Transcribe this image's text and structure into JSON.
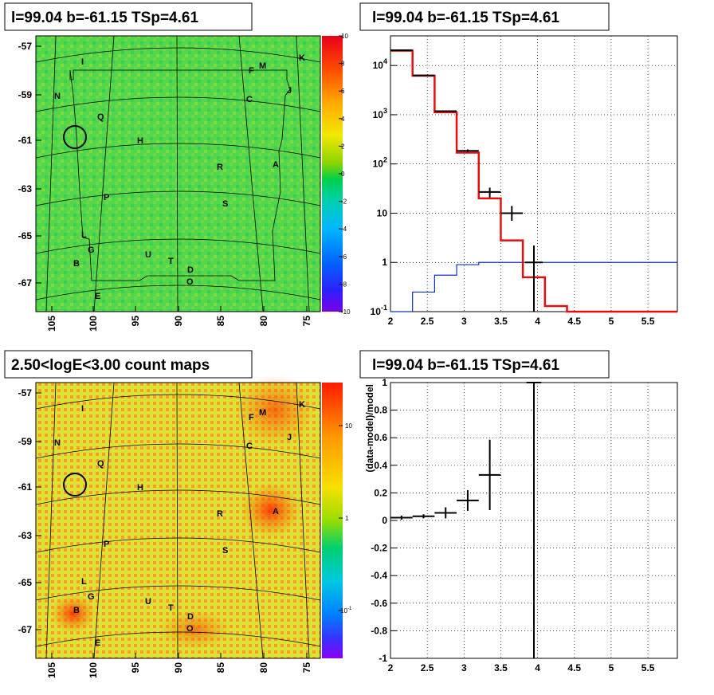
{
  "panels": {
    "tl": {
      "title": "l=99.04 b=-61.15 TSp=4.61"
    },
    "tr": {
      "title": "l=99.04 b=-61.15 TSp=4.61"
    },
    "bl": {
      "title": "2.50<logE<3.00 count maps"
    },
    "br": {
      "title": "l=99.04 b=-61.15 TSp=4.61"
    }
  },
  "maps": {
    "lat_ticks": [
      "-57",
      "-59",
      "-61",
      "-63",
      "-65",
      "-67"
    ],
    "lon_ticks": [
      "105",
      "100",
      "95",
      "90",
      "85",
      "80",
      "75"
    ],
    "source_labels": [
      "I",
      "M",
      "K",
      "F",
      "N",
      "C",
      "J",
      "Q",
      "H",
      "A",
      "R",
      "P",
      "S",
      "L",
      "G",
      "U",
      "T",
      "B",
      "D",
      "O",
      "E"
    ]
  },
  "colorbars": {
    "residual_labels": [
      "10",
      "8",
      "6",
      "4",
      "2",
      "0",
      "-2",
      "-4",
      "-6",
      "-8",
      "-10"
    ],
    "counts_labels": {
      "ten": "10",
      "one": "1",
      "tenth_base": "10",
      "tenth_exp": "-1"
    }
  },
  "chart_data": [
    {
      "type": "step",
      "title": "l=99.04 b=-61.15 TSp=4.61",
      "xlim": [
        2,
        5.9
      ],
      "ylim": [
        0.1,
        40000
      ],
      "yscale": "log",
      "grid": true,
      "x_ticks": [
        "2",
        "2.5",
        "3",
        "3.5",
        "4",
        "4.5",
        "5",
        "5.5"
      ],
      "y_ticks": [
        {
          "base": "10",
          "exp": "4"
        },
        {
          "base": "10",
          "exp": "3"
        },
        {
          "base": "10",
          "exp": "2"
        },
        {
          "text": "10"
        },
        {
          "text": "1"
        },
        {
          "base": "10",
          "exp": "-1"
        }
      ],
      "x_edges": [
        2.0,
        2.3,
        2.6,
        2.9,
        3.2,
        3.5,
        3.8,
        4.1,
        4.4,
        5.9
      ],
      "model_total": [
        20000,
        6200,
        1120,
        170,
        20,
        2.8,
        0.5,
        0.13,
        0.1
      ],
      "model_source": [
        0.1,
        0.25,
        0.55,
        0.9,
        1.0,
        1.0,
        1.0,
        1.0,
        1.0
      ],
      "data_points": [
        {
          "x": 2.15,
          "y": 20400,
          "xerr": 0.15,
          "ylo": 20200,
          "yhi": 20600
        },
        {
          "x": 2.45,
          "y": 6300,
          "xerr": 0.15,
          "ylo": 6220,
          "yhi": 6380
        },
        {
          "x": 2.75,
          "y": 1180,
          "xerr": 0.15,
          "ylo": 1150,
          "yhi": 1210
        },
        {
          "x": 3.05,
          "y": 185,
          "xerr": 0.15,
          "ylo": 172,
          "yhi": 198
        },
        {
          "x": 3.35,
          "y": 27,
          "xerr": 0.15,
          "ylo": 21,
          "yhi": 33
        },
        {
          "x": 3.65,
          "y": 10,
          "xerr": 0.15,
          "ylo": 7,
          "yhi": 14
        },
        {
          "x": 3.95,
          "y": 1,
          "xerr": 0.12,
          "ylo": 0.1,
          "yhi": 2.2
        }
      ]
    },
    {
      "type": "errorbar",
      "title": "l=99.04 b=-61.15 TSp=4.61",
      "ylabel": "(data-model)/model",
      "xlim": [
        2,
        5.9
      ],
      "ylim": [
        -1,
        1
      ],
      "grid": true,
      "x_ticks": [
        "2",
        "2.5",
        "3",
        "3.5",
        "4",
        "4.5",
        "5",
        "5.5"
      ],
      "y_ticks": [
        "1",
        "0.8",
        "0.6",
        "0.4",
        "0.2",
        "0",
        "-0.2",
        "-0.4",
        "-0.6",
        "-0.8",
        "-1"
      ],
      "points": [
        {
          "x": 2.15,
          "y": 0.02,
          "xerr": 0.15,
          "yerr": 0.015
        },
        {
          "x": 2.45,
          "y": 0.03,
          "xerr": 0.15,
          "yerr": 0.015
        },
        {
          "x": 2.75,
          "y": 0.055,
          "xerr": 0.15,
          "yerr": 0.04
        },
        {
          "x": 3.05,
          "y": 0.145,
          "xerr": 0.15,
          "yerr": 0.075
        },
        {
          "x": 3.35,
          "y": 0.33,
          "xerr": 0.15,
          "yerr": 0.255
        },
        {
          "x": 3.95,
          "y": 1.0,
          "xerr": 0.1,
          "yerr": 2.0
        }
      ]
    }
  ]
}
